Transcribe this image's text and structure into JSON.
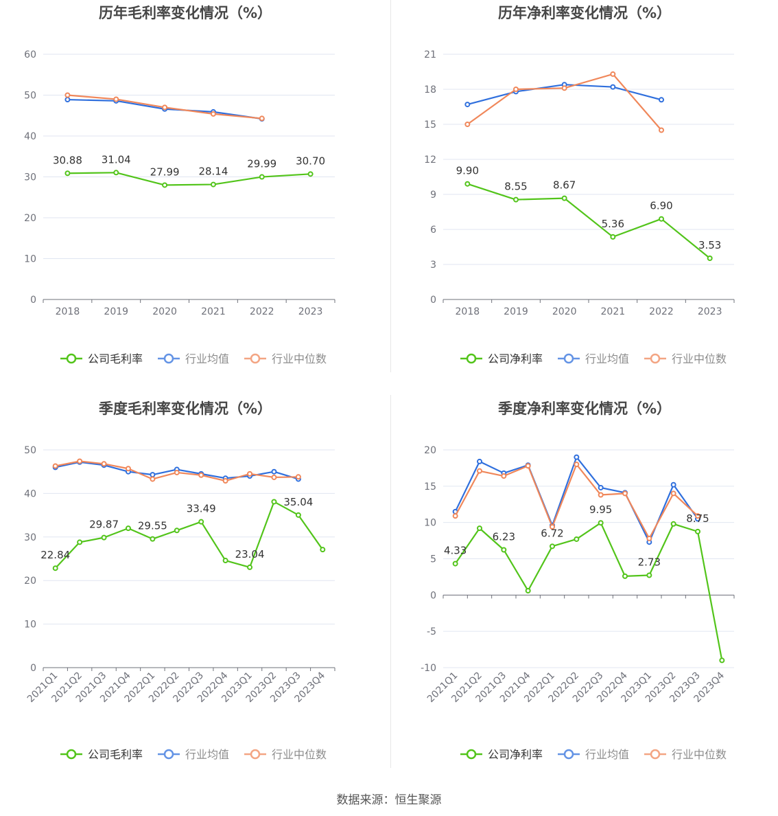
{
  "footer": "数据来源：恒生聚源",
  "colors": {
    "company": "#52c41a",
    "avg": "#2f6fdd",
    "median": "#f0875a",
    "grid": "#e0e6f1",
    "axis": "#6e7079",
    "label": "#333333",
    "title": "#464646"
  },
  "chart_data": [
    {
      "type": "line",
      "title": "历年毛利率变化情况（%）",
      "categories": [
        "2018",
        "2019",
        "2020",
        "2021",
        "2022",
        "2023"
      ],
      "ylim": [
        0,
        60
      ],
      "yticks": [
        0,
        10,
        20,
        30,
        40,
        50,
        60
      ],
      "grid": true,
      "legend_position": "bottom",
      "series": [
        {
          "name": "公司毛利率",
          "role": "company",
          "values": [
            30.88,
            31.04,
            27.99,
            28.14,
            29.99,
            30.7
          ],
          "labels": [
            "30.88",
            "31.04",
            "27.99",
            "28.14",
            "29.99",
            "30.70"
          ]
        },
        {
          "name": "行业均值",
          "role": "avg",
          "values": [
            48.9,
            48.6,
            46.6,
            45.9,
            44.2,
            null
          ]
        },
        {
          "name": "行业中位数",
          "role": "median",
          "values": [
            50.0,
            49.0,
            47.0,
            45.4,
            44.3,
            null
          ]
        }
      ]
    },
    {
      "type": "line",
      "title": "历年净利率变化情况（%）",
      "categories": [
        "2018",
        "2019",
        "2020",
        "2021",
        "2022",
        "2023"
      ],
      "ylim": [
        0,
        21
      ],
      "yticks": [
        0,
        3,
        6,
        9,
        12,
        15,
        18,
        21
      ],
      "grid": true,
      "legend_position": "bottom",
      "series": [
        {
          "name": "公司净利率",
          "role": "company",
          "values": [
            9.9,
            8.55,
            8.67,
            5.36,
            6.9,
            3.53
          ],
          "labels": [
            "9.90",
            "8.55",
            "8.67",
            "5.36",
            "6.90",
            "3.53"
          ]
        },
        {
          "name": "行业均值",
          "role": "avg",
          "values": [
            16.7,
            17.8,
            18.4,
            18.2,
            17.1,
            null
          ]
        },
        {
          "name": "行业中位数",
          "role": "median",
          "values": [
            15.0,
            18.0,
            18.1,
            19.3,
            14.5,
            null
          ]
        }
      ]
    },
    {
      "type": "line",
      "title": "季度毛利率变化情况（%）",
      "categories": [
        "2021Q1",
        "2021Q2",
        "2021Q3",
        "2021Q4",
        "2022Q1",
        "2022Q2",
        "2022Q3",
        "2022Q4",
        "2023Q1",
        "2023Q2",
        "2023Q3",
        "2023Q4"
      ],
      "ylim": [
        0,
        50
      ],
      "yticks": [
        0,
        10,
        20,
        30,
        40,
        50
      ],
      "grid": true,
      "legend_position": "bottom",
      "series": [
        {
          "name": "公司毛利率",
          "role": "company",
          "values": [
            22.84,
            28.8,
            29.87,
            32.0,
            29.55,
            31.5,
            33.49,
            24.6,
            23.04,
            38.1,
            35.04,
            27.1
          ],
          "labels": [
            "22.84",
            "",
            "29.87",
            "",
            "29.55",
            "",
            "33.49",
            "",
            "23.04",
            "",
            "35.04",
            ""
          ]
        },
        {
          "name": "行业均值",
          "role": "avg",
          "values": [
            46.0,
            47.2,
            46.5,
            45.0,
            44.3,
            45.5,
            44.5,
            43.5,
            44.0,
            45.0,
            43.3,
            null
          ]
        },
        {
          "name": "行业中位数",
          "role": "median",
          "values": [
            46.3,
            47.4,
            46.8,
            45.7,
            43.3,
            44.8,
            44.2,
            42.9,
            44.5,
            43.7,
            43.8,
            null
          ]
        }
      ]
    },
    {
      "type": "line",
      "title": "季度净利率变化情况（%）",
      "categories": [
        "2021Q1",
        "2021Q2",
        "2021Q3",
        "2021Q4",
        "2022Q1",
        "2022Q2",
        "2022Q3",
        "2022Q4",
        "2023Q1",
        "2023Q2",
        "2023Q3",
        "2023Q4"
      ],
      "ylim": [
        -10,
        20
      ],
      "yticks": [
        -10,
        -5,
        0,
        5,
        10,
        15,
        20
      ],
      "grid": true,
      "legend_position": "bottom",
      "series": [
        {
          "name": "公司净利率",
          "role": "company",
          "values": [
            4.33,
            9.2,
            6.23,
            0.6,
            6.72,
            7.7,
            9.95,
            2.6,
            2.73,
            9.8,
            8.75,
            -9.0
          ],
          "labels": [
            "4.33",
            "",
            "6.23",
            "",
            "6.72",
            "",
            "9.95",
            "",
            "2.73",
            "",
            "8.75",
            ""
          ]
        },
        {
          "name": "行业均值",
          "role": "avg",
          "values": [
            11.5,
            18.4,
            16.8,
            17.9,
            9.6,
            19.0,
            14.8,
            14.1,
            7.3,
            15.2,
            10.5,
            null
          ]
        },
        {
          "name": "行业中位数",
          "role": "median",
          "values": [
            10.9,
            17.1,
            16.4,
            17.8,
            9.4,
            18.0,
            13.8,
            14.0,
            7.8,
            14.0,
            10.9,
            null
          ]
        }
      ]
    }
  ]
}
